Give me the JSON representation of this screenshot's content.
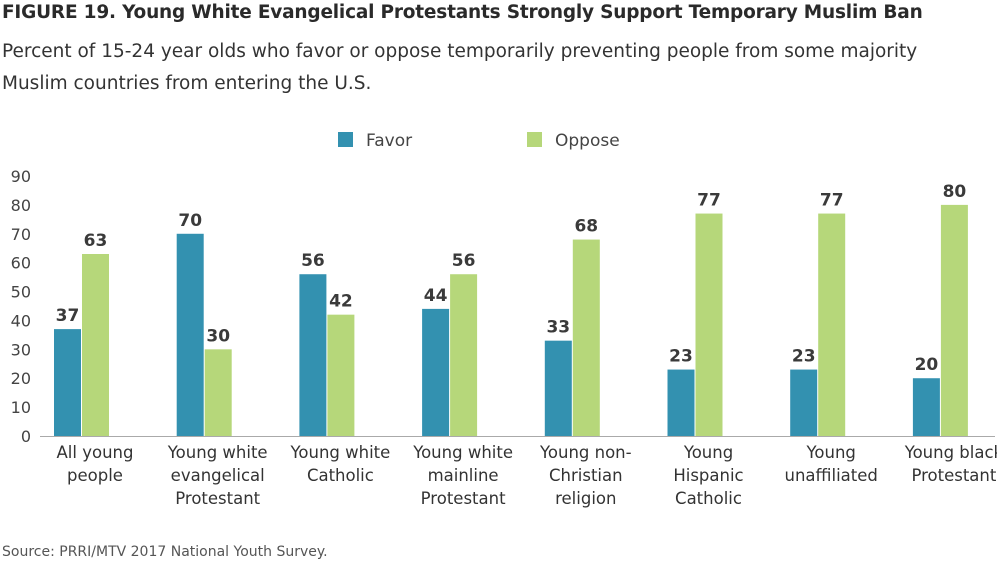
{
  "chart_data": {
    "type": "bar",
    "title": "FIGURE 19. Young White Evangelical Protestants Strongly Support Temporary Muslim Ban",
    "subtitle": "Percent of 15-24 year olds who favor or oppose temporarily preventing people from some majority Muslim countries from entering the U.S.",
    "categories": [
      [
        "All young",
        "people"
      ],
      [
        "Young white",
        "evangelical",
        "Protestant"
      ],
      [
        "Young white",
        "Catholic"
      ],
      [
        "Young white",
        "mainline",
        "Protestant"
      ],
      [
        "Young non-",
        "Christian",
        "religion"
      ],
      [
        "Young",
        "Hispanic",
        "Catholic"
      ],
      [
        "Young",
        "unaffiliated"
      ],
      [
        "Young black",
        "Protestant"
      ]
    ],
    "series": [
      {
        "name": "Favor",
        "color": "#3391b0",
        "values": [
          37,
          70,
          56,
          44,
          33,
          23,
          23,
          20
        ]
      },
      {
        "name": "Oppose",
        "color": "#b6d77a",
        "values": [
          63,
          30,
          42,
          56,
          68,
          77,
          77,
          80
        ]
      }
    ],
    "ylim": [
      0,
      90
    ],
    "yticks": [
      0,
      10,
      20,
      30,
      40,
      50,
      60,
      70,
      80,
      90
    ],
    "grid": false,
    "legend_position": "top-center",
    "source": "Source: PRRI/MTV 2017 National Youth Survey."
  }
}
